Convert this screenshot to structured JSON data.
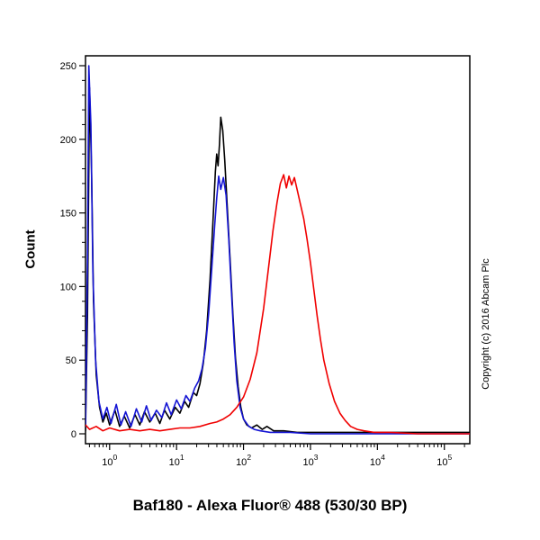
{
  "figure": {
    "title": "Baf180 - Alexa Fluor® 488 (530/30 BP)",
    "ylabel": "Count",
    "copyright": "Copyright (c) 2016 Abcam Plc"
  },
  "chart_data": {
    "type": "line",
    "subtype": "flow-cytometry-histogram",
    "x_scale": "log10",
    "xlim_log10": [
      -0.36,
      5.38
    ],
    "ylim": [
      0,
      250
    ],
    "x_tick_base": "10",
    "x_ticks_exponents": [
      0,
      1,
      2,
      3,
      4,
      5
    ],
    "y_ticks": [
      0,
      50,
      100,
      150,
      200,
      250
    ],
    "y_minor_step": 10,
    "grid": false,
    "legend": "none",
    "axis_color": "#000000",
    "background": "#ffffff",
    "series": [
      {
        "name": "unlabelled-control-black",
        "color": "#000000",
        "points": [
          [
            -0.36,
            2
          ],
          [
            -0.33,
            80
          ],
          [
            -0.3,
            235
          ],
          [
            -0.27,
            180
          ],
          [
            -0.24,
            90
          ],
          [
            -0.2,
            40
          ],
          [
            -0.15,
            18
          ],
          [
            -0.1,
            8
          ],
          [
            -0.05,
            14
          ],
          [
            0.0,
            6
          ],
          [
            0.08,
            16
          ],
          [
            0.15,
            5
          ],
          [
            0.22,
            12
          ],
          [
            0.3,
            4
          ],
          [
            0.38,
            13
          ],
          [
            0.45,
            6
          ],
          [
            0.52,
            15
          ],
          [
            0.6,
            8
          ],
          [
            0.68,
            14
          ],
          [
            0.75,
            7
          ],
          [
            0.82,
            16
          ],
          [
            0.9,
            10
          ],
          [
            0.98,
            18
          ],
          [
            1.05,
            14
          ],
          [
            1.12,
            22
          ],
          [
            1.18,
            18
          ],
          [
            1.25,
            28
          ],
          [
            1.3,
            26
          ],
          [
            1.35,
            34
          ],
          [
            1.4,
            48
          ],
          [
            1.45,
            70
          ],
          [
            1.5,
            105
          ],
          [
            1.55,
            150
          ],
          [
            1.58,
            178
          ],
          [
            1.6,
            190
          ],
          [
            1.62,
            182
          ],
          [
            1.64,
            196
          ],
          [
            1.66,
            215
          ],
          [
            1.69,
            206
          ],
          [
            1.72,
            186
          ],
          [
            1.76,
            152
          ],
          [
            1.8,
            118
          ],
          [
            1.84,
            82
          ],
          [
            1.88,
            52
          ],
          [
            1.92,
            32
          ],
          [
            1.96,
            18
          ],
          [
            2.0,
            10
          ],
          [
            2.05,
            6
          ],
          [
            2.12,
            4
          ],
          [
            2.2,
            6
          ],
          [
            2.28,
            3
          ],
          [
            2.35,
            5
          ],
          [
            2.45,
            2
          ],
          [
            2.6,
            2
          ],
          [
            2.8,
            1
          ],
          [
            3.0,
            1
          ],
          [
            3.5,
            1
          ],
          [
            4.0,
            1
          ],
          [
            4.5,
            1
          ],
          [
            5.0,
            1
          ],
          [
            5.38,
            1
          ]
        ]
      },
      {
        "name": "isotype-control-blue",
        "color": "#1414d4",
        "points": [
          [
            -0.36,
            5
          ],
          [
            -0.33,
            120
          ],
          [
            -0.31,
            250
          ],
          [
            -0.28,
            210
          ],
          [
            -0.25,
            110
          ],
          [
            -0.21,
            50
          ],
          [
            -0.16,
            22
          ],
          [
            -0.1,
            10
          ],
          [
            -0.04,
            18
          ],
          [
            0.02,
            7
          ],
          [
            0.1,
            20
          ],
          [
            0.17,
            6
          ],
          [
            0.24,
            15
          ],
          [
            0.32,
            5
          ],
          [
            0.4,
            17
          ],
          [
            0.48,
            8
          ],
          [
            0.55,
            19
          ],
          [
            0.62,
            9
          ],
          [
            0.7,
            16
          ],
          [
            0.78,
            11
          ],
          [
            0.85,
            21
          ],
          [
            0.92,
            13
          ],
          [
            1.0,
            23
          ],
          [
            1.07,
            17
          ],
          [
            1.14,
            26
          ],
          [
            1.2,
            22
          ],
          [
            1.27,
            31
          ],
          [
            1.33,
            36
          ],
          [
            1.38,
            44
          ],
          [
            1.43,
            58
          ],
          [
            1.48,
            82
          ],
          [
            1.53,
            115
          ],
          [
            1.57,
            142
          ],
          [
            1.6,
            160
          ],
          [
            1.63,
            175
          ],
          [
            1.66,
            166
          ],
          [
            1.7,
            174
          ],
          [
            1.74,
            162
          ],
          [
            1.78,
            132
          ],
          [
            1.82,
            96
          ],
          [
            1.86,
            62
          ],
          [
            1.9,
            36
          ],
          [
            1.95,
            18
          ],
          [
            2.0,
            10
          ],
          [
            2.08,
            5
          ],
          [
            2.16,
            3
          ],
          [
            2.25,
            2
          ],
          [
            2.4,
            1
          ],
          [
            2.7,
            1
          ],
          [
            3.0,
            0
          ],
          [
            3.5,
            0
          ],
          [
            4.0,
            0
          ],
          [
            4.5,
            0
          ],
          [
            5.0,
            0
          ],
          [
            5.38,
            0
          ]
        ]
      },
      {
        "name": "baf180-stained-red",
        "color": "#f00000",
        "points": [
          [
            -0.36,
            6
          ],
          [
            -0.3,
            3
          ],
          [
            -0.2,
            5
          ],
          [
            -0.1,
            2
          ],
          [
            0.0,
            4
          ],
          [
            0.15,
            2
          ],
          [
            0.3,
            3
          ],
          [
            0.45,
            2
          ],
          [
            0.6,
            3
          ],
          [
            0.75,
            2
          ],
          [
            0.9,
            3
          ],
          [
            1.05,
            4
          ],
          [
            1.2,
            4
          ],
          [
            1.35,
            5
          ],
          [
            1.5,
            7
          ],
          [
            1.6,
            8
          ],
          [
            1.7,
            10
          ],
          [
            1.8,
            13
          ],
          [
            1.9,
            18
          ],
          [
            2.0,
            25
          ],
          [
            2.1,
            37
          ],
          [
            2.2,
            55
          ],
          [
            2.3,
            85
          ],
          [
            2.38,
            115
          ],
          [
            2.44,
            138
          ],
          [
            2.5,
            157
          ],
          [
            2.55,
            170
          ],
          [
            2.6,
            176
          ],
          [
            2.64,
            167
          ],
          [
            2.68,
            175
          ],
          [
            2.72,
            169
          ],
          [
            2.76,
            174
          ],
          [
            2.8,
            166
          ],
          [
            2.85,
            156
          ],
          [
            2.9,
            146
          ],
          [
            2.95,
            132
          ],
          [
            3.0,
            116
          ],
          [
            3.05,
            98
          ],
          [
            3.1,
            80
          ],
          [
            3.15,
            64
          ],
          [
            3.2,
            50
          ],
          [
            3.28,
            34
          ],
          [
            3.36,
            22
          ],
          [
            3.44,
            14
          ],
          [
            3.52,
            9
          ],
          [
            3.6,
            5
          ],
          [
            3.7,
            3
          ],
          [
            3.8,
            2
          ],
          [
            3.95,
            1
          ],
          [
            4.2,
            1
          ],
          [
            4.6,
            0
          ],
          [
            5.0,
            0
          ],
          [
            5.38,
            0
          ]
        ]
      }
    ]
  }
}
